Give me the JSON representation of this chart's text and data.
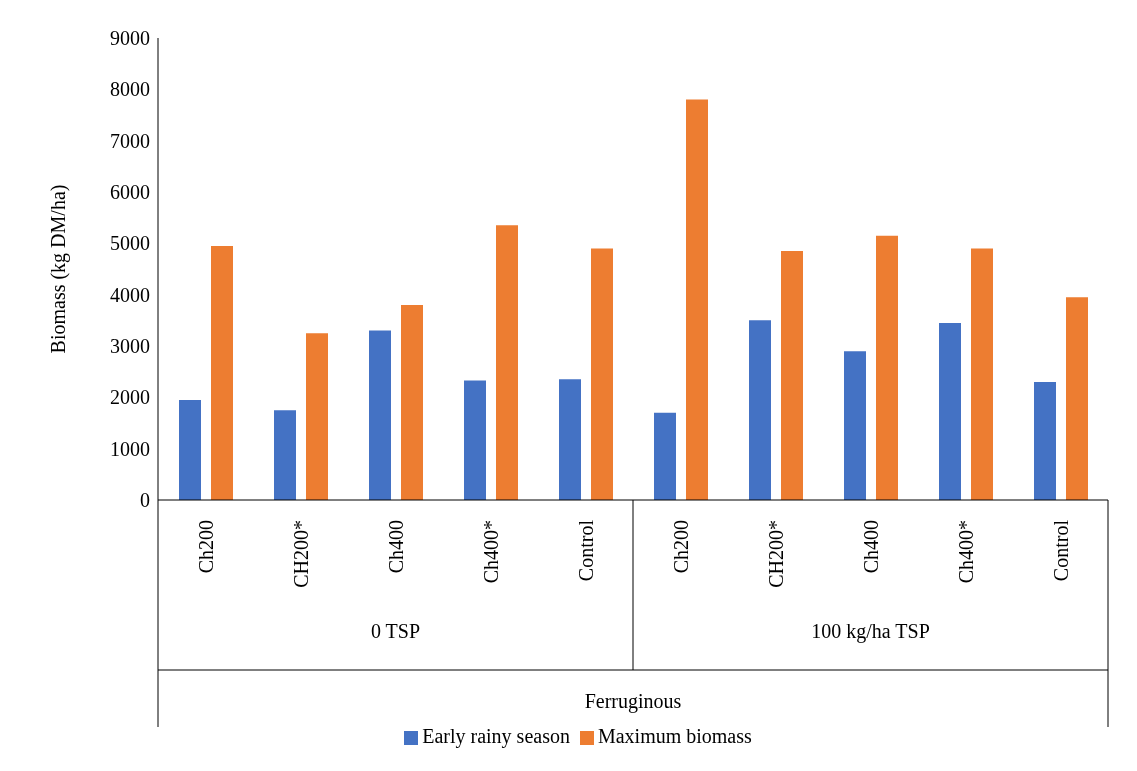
{
  "chart_data": {
    "type": "bar",
    "ylabel": "Biomass (kg DM/ha)",
    "categories": [
      "Ch200",
      "CH200*",
      "Ch400",
      "Ch400*",
      "Control",
      "Ch200",
      "CH200*",
      "Ch400",
      "Ch400*",
      "Control"
    ],
    "series": [
      {
        "name": "Early rainy season",
        "color": "#4472c4",
        "values": [
          1950,
          1750,
          3300,
          2330,
          2350,
          1700,
          3500,
          2900,
          3450,
          2300
        ]
      },
      {
        "name": "Maximum biomass",
        "color": "#ed7d31",
        "values": [
          4950,
          3250,
          3800,
          5350,
          4900,
          7800,
          4850,
          5150,
          4900,
          3950
        ]
      }
    ],
    "annotations": [
      "0 TSP",
      "100 kg/ha TSP",
      "Ferruginous"
    ],
    "ylim": [
      0,
      9000
    ],
    "yticks": [
      0,
      1000,
      2000,
      3000,
      4000,
      5000,
      6000,
      7000,
      8000,
      9000
    ],
    "grid": false,
    "legend": "bottom"
  }
}
